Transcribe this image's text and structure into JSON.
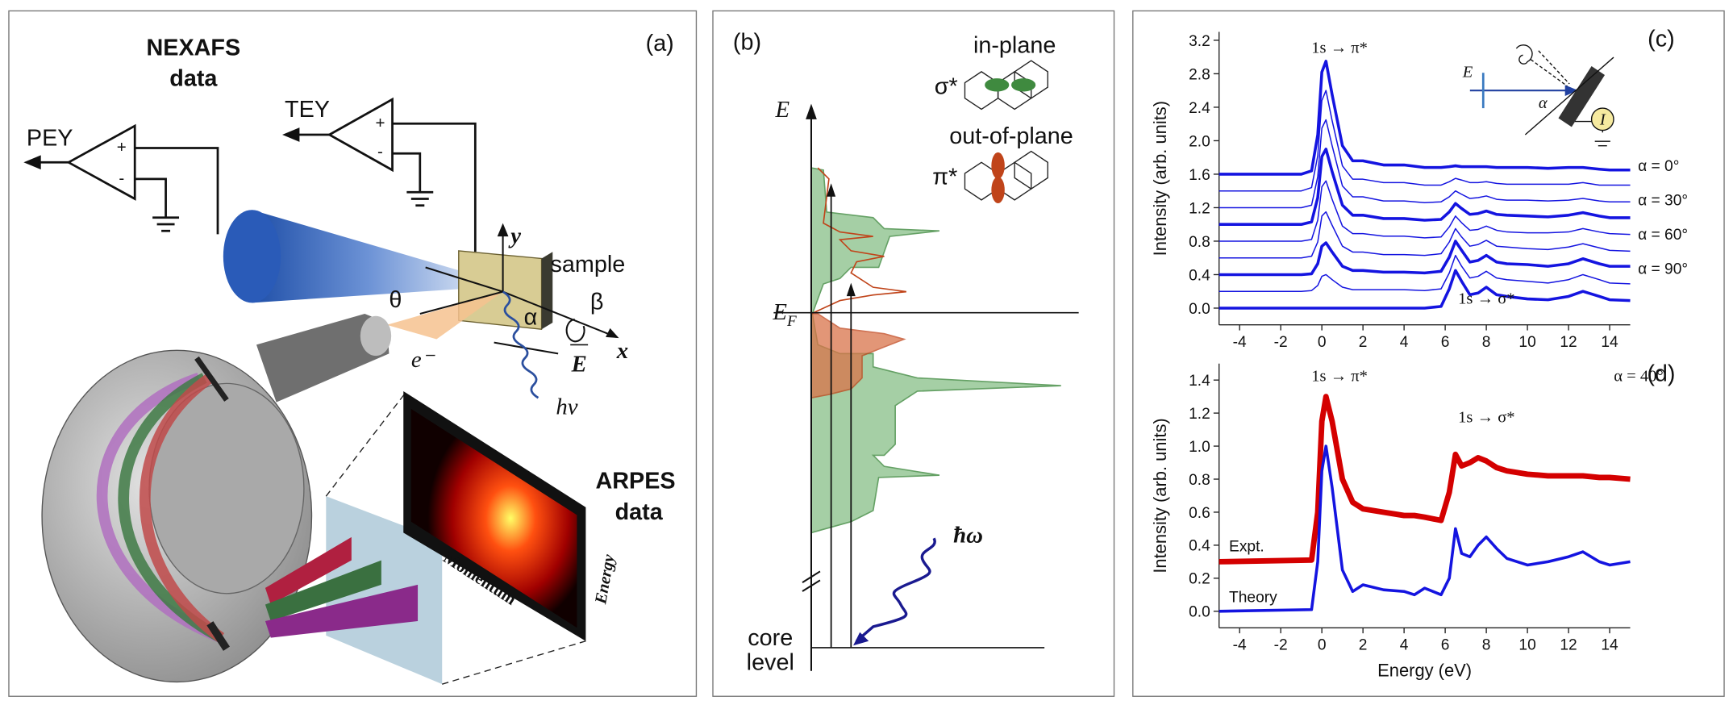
{
  "panel_a": {
    "label": "(a)",
    "nexafs": [
      "NEXAFS",
      "data"
    ],
    "pey": {
      "name": "PEY",
      "plus": "+",
      "minus": "-"
    },
    "tey": {
      "name": "TEY",
      "plus": "+",
      "minus": "-"
    },
    "sample": "sample",
    "axis_y": "y",
    "axis_x": "x",
    "theta": "θ",
    "beta": "β",
    "alpha": "α",
    "electron": "e⁻",
    "field": "E",
    "photon": "hν",
    "arpes": [
      "ARPES",
      "data"
    ],
    "momentum": "Momentum",
    "energy": "Energy"
  },
  "panel_b": {
    "label": "(b)",
    "energy_axis": "E",
    "fermi": {
      "main": "E",
      "sub": "F"
    },
    "in_plane": "in-plane",
    "sigma": "σ*",
    "out_of_plane": "out-of-plane",
    "pi": "π*",
    "photon": "ħω",
    "core_level": [
      "core",
      "level"
    ]
  },
  "chart_data": [
    {
      "type": "line",
      "panel_label": "(c)",
      "ylabel": "Intensity (arb. units)",
      "annotations": [
        "1s → π*",
        "1s → σ*"
      ],
      "inset": {
        "field": "E",
        "angle": "α",
        "current": "I"
      },
      "x": [
        -5,
        -1,
        -0.5,
        -0.2,
        0,
        0.2,
        0.5,
        1,
        1.5,
        2,
        3,
        4,
        5,
        5.8,
        6.2,
        6.5,
        6.8,
        7.2,
        7.6,
        8,
        8.5,
        9,
        10,
        11,
        12,
        12.7,
        13.5,
        14,
        15
      ],
      "xlim": [
        -5,
        15
      ],
      "xticks": [
        -4,
        -2,
        0,
        2,
        4,
        6,
        8,
        10,
        12,
        14
      ],
      "ylim": [
        -0.2,
        3.3
      ],
      "yticks": [
        {
          "value": 0,
          "label": "0.0"
        },
        {
          "value": 0.4,
          "label": "0.4"
        },
        {
          "value": 0.8,
          "label": "0.8"
        },
        {
          "value": 1.2,
          "label": "1.2"
        },
        {
          "value": 1.6,
          "label": "1.6"
        },
        {
          "value": 2.0,
          "label": "2.0"
        },
        {
          "value": 2.4,
          "label": "2.4"
        },
        {
          "value": 2.8,
          "label": "2.8"
        },
        {
          "value": 3.2,
          "label": "3.2"
        }
      ],
      "series": [
        {
          "name": "α = 0°",
          "color": "#1414e0",
          "values": [
            1.6,
            1.6,
            1.64,
            2.07,
            2.82,
            2.95,
            2.55,
            1.94,
            1.76,
            1.76,
            1.71,
            1.71,
            1.68,
            1.68,
            1.69,
            1.7,
            1.69,
            1.69,
            1.69,
            1.69,
            1.68,
            1.68,
            1.68,
            1.67,
            1.68,
            1.68,
            1.66,
            1.65,
            1.65
          ]
        },
        {
          "color": "#1414e0",
          "values": [
            1.4,
            1.4,
            1.44,
            1.82,
            2.48,
            2.6,
            2.24,
            1.7,
            1.54,
            1.54,
            1.5,
            1.5,
            1.47,
            1.47,
            1.51,
            1.55,
            1.53,
            1.5,
            1.5,
            1.51,
            1.49,
            1.48,
            1.48,
            1.48,
            1.48,
            1.5,
            1.47,
            1.47,
            1.47
          ]
        },
        {
          "color": "#1414e0",
          "values": [
            1.2,
            1.2,
            1.23,
            1.57,
            2.15,
            2.25,
            1.94,
            1.46,
            1.33,
            1.33,
            1.28,
            1.28,
            1.26,
            1.27,
            1.33,
            1.4,
            1.36,
            1.31,
            1.32,
            1.34,
            1.3,
            1.29,
            1.29,
            1.28,
            1.29,
            1.31,
            1.28,
            1.27,
            1.27
          ]
        },
        {
          "name": "α = 30°",
          "color": "#1414e0",
          "values": [
            1,
            1,
            1.03,
            1.32,
            1.81,
            1.9,
            1.63,
            1.23,
            1.11,
            1.11,
            1.07,
            1.07,
            1.05,
            1.06,
            1.15,
            1.25,
            1.19,
            1.12,
            1.13,
            1.16,
            1.12,
            1.11,
            1.1,
            1.09,
            1.11,
            1.14,
            1.1,
            1.08,
            1.08
          ]
        },
        {
          "color": "#1414e0",
          "values": [
            0.8,
            0.8,
            0.82,
            1.05,
            1.45,
            1.52,
            1.3,
            0.98,
            0.89,
            0.89,
            0.86,
            0.86,
            0.84,
            0.85,
            0.97,
            1.1,
            1.02,
            0.93,
            0.94,
            0.98,
            0.93,
            0.91,
            0.9,
            0.9,
            0.91,
            0.95,
            0.91,
            0.89,
            0.88
          ]
        },
        {
          "color": "#1414e0",
          "values": [
            0.6,
            0.6,
            0.62,
            0.79,
            1.1,
            1.15,
            0.99,
            0.74,
            0.67,
            0.67,
            0.64,
            0.64,
            0.63,
            0.65,
            0.79,
            0.95,
            0.85,
            0.74,
            0.76,
            0.81,
            0.74,
            0.73,
            0.71,
            0.7,
            0.73,
            0.77,
            0.72,
            0.69,
            0.68
          ]
        },
        {
          "name": "α = 60°",
          "color": "#1414e0",
          "values": [
            0.4,
            0.4,
            0.41,
            0.53,
            0.74,
            0.78,
            0.67,
            0.5,
            0.45,
            0.45,
            0.43,
            0.43,
            0.42,
            0.44,
            0.61,
            0.8,
            0.69,
            0.55,
            0.57,
            0.63,
            0.55,
            0.53,
            0.52,
            0.5,
            0.53,
            0.59,
            0.53,
            0.5,
            0.5
          ]
        },
        {
          "color": "#1414e0",
          "values": [
            0.2,
            0.2,
            0.21,
            0.27,
            0.38,
            0.4,
            0.34,
            0.25,
            0.22,
            0.22,
            0.22,
            0.22,
            0.21,
            0.23,
            0.42,
            0.63,
            0.5,
            0.36,
            0.38,
            0.44,
            0.36,
            0.34,
            0.32,
            0.3,
            0.34,
            0.4,
            0.34,
            0.3,
            0.29
          ]
        },
        {
          "name": "α = 90°",
          "color": "#1414e0",
          "values": [
            0,
            0,
            0,
            0,
            0,
            0,
            0,
            0,
            0,
            0,
            0,
            0,
            0,
            0.02,
            0.23,
            0.45,
            0.32,
            0.16,
            0.18,
            0.25,
            0.16,
            0.14,
            0.11,
            0.1,
            0.14,
            0.2,
            0.14,
            0.1,
            0.09
          ]
        }
      ]
    },
    {
      "type": "line",
      "panel_label": "(d)",
      "xlabel": "Energy (eV)",
      "ylabel": "Intensity (arb. units)",
      "annotations": [
        "α = 40°",
        "1s → π*",
        "1s → σ*"
      ],
      "x": [
        -5,
        -0.5,
        -0.2,
        0,
        0.2,
        0.5,
        1,
        1.5,
        2,
        3,
        4,
        4.5,
        5,
        5.8,
        6.2,
        6.5,
        6.8,
        7.2,
        7.6,
        8,
        8.5,
        9,
        10,
        11,
        12,
        12.7,
        13.5,
        14,
        15
      ],
      "xlim": [
        -5,
        15
      ],
      "xticks": [
        -4,
        -2,
        0,
        2,
        4,
        6,
        8,
        10,
        12,
        14
      ],
      "ylim": [
        -0.1,
        1.5
      ],
      "yticks": [
        {
          "value": 0,
          "label": "0.0"
        },
        {
          "value": 0.2,
          "label": "0.2"
        },
        {
          "value": 0.4,
          "label": "0.4"
        },
        {
          "value": 0.6,
          "label": "0.6"
        },
        {
          "value": 0.8,
          "label": "0.8"
        },
        {
          "value": 1.0,
          "label": "1.0"
        },
        {
          "value": 1.2,
          "label": "1.2"
        },
        {
          "value": 1.4,
          "label": "1.4"
        }
      ],
      "series": [
        {
          "name": "Expt.",
          "color": "#d40000",
          "values": [
            0.3,
            0.31,
            0.6,
            1.15,
            1.3,
            1.15,
            0.8,
            0.66,
            0.62,
            0.6,
            0.58,
            0.58,
            0.57,
            0.55,
            0.72,
            0.95,
            0.88,
            0.9,
            0.93,
            0.91,
            0.87,
            0.85,
            0.83,
            0.82,
            0.82,
            0.82,
            0.81,
            0.81,
            0.8
          ]
        },
        {
          "name": "Theory",
          "color": "#1414e0",
          "values": [
            0,
            0.01,
            0.3,
            0.85,
            1.0,
            0.75,
            0.25,
            0.12,
            0.16,
            0.13,
            0.12,
            0.1,
            0.14,
            0.1,
            0.2,
            0.5,
            0.35,
            0.33,
            0.4,
            0.45,
            0.38,
            0.32,
            0.28,
            0.3,
            0.33,
            0.36,
            0.3,
            0.28,
            0.3
          ]
        }
      ]
    }
  ]
}
